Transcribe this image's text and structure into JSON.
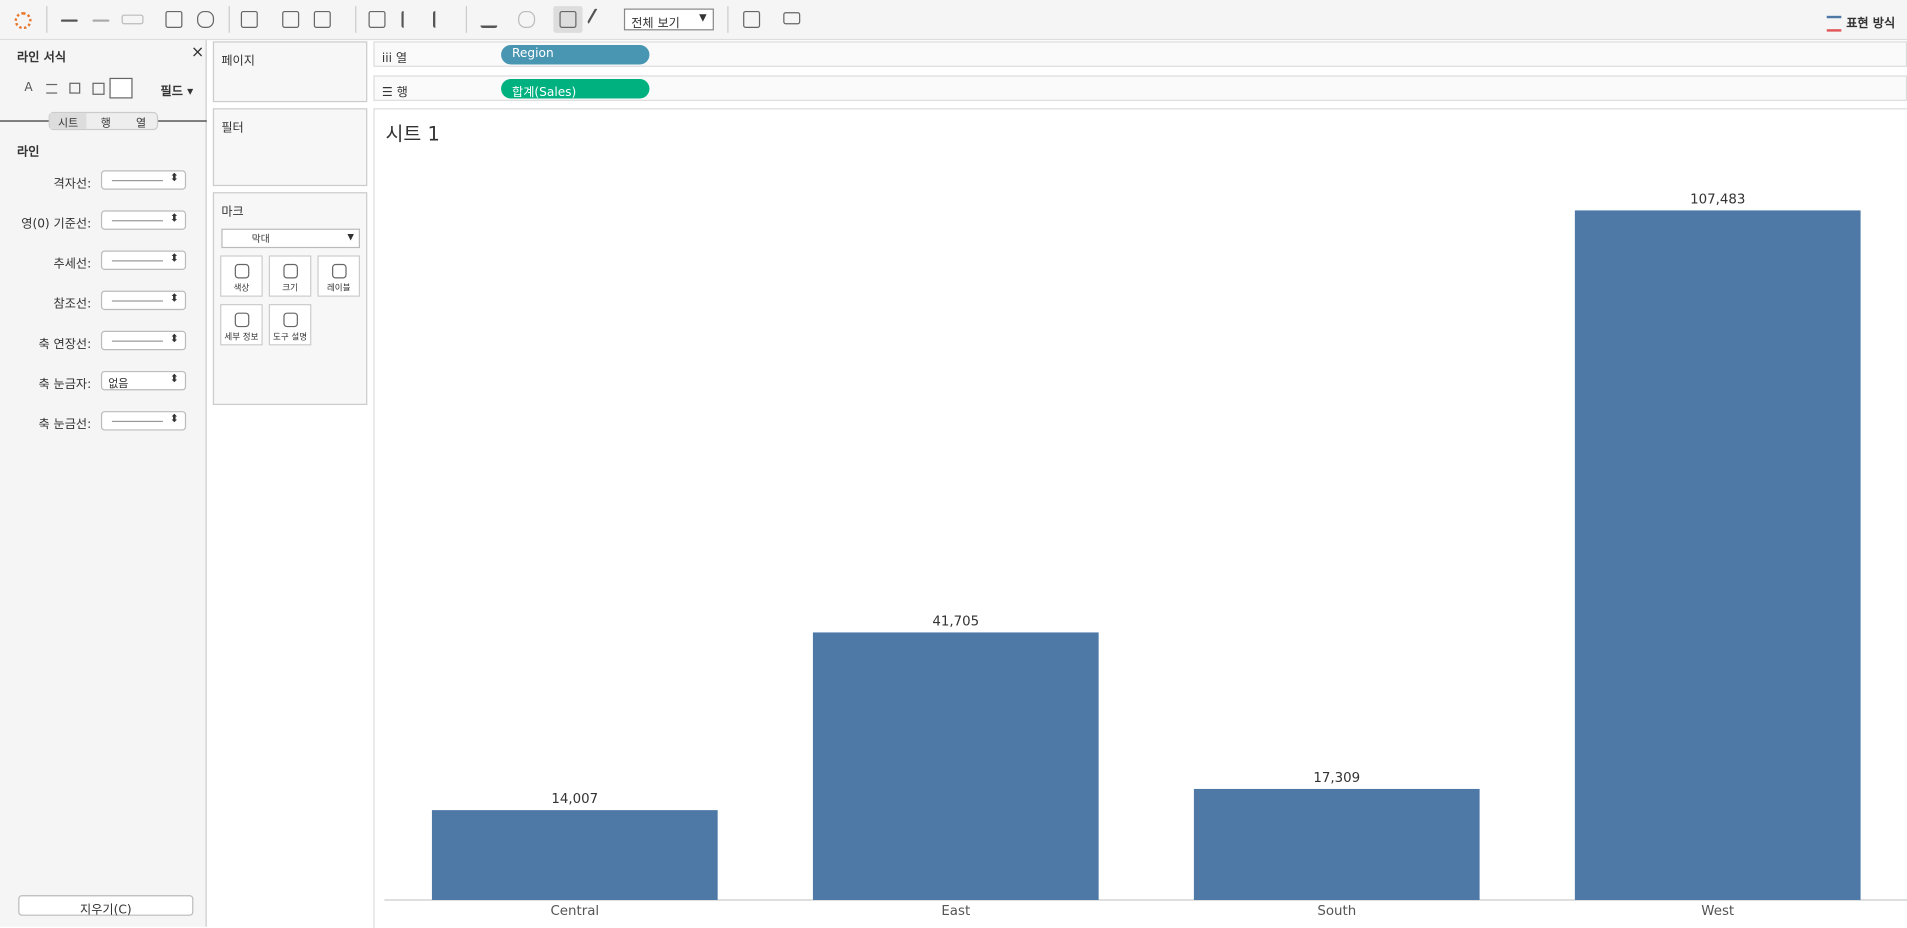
{
  "toolbar": {
    "view_mode": "전체 보기",
    "show_me": "표현 방식"
  },
  "format_panel": {
    "title": "라인 서식",
    "fields_button": "필드",
    "tabs": [
      "시트",
      "행",
      "열"
    ],
    "section": "라인",
    "rows": [
      {
        "label": "격자선:"
      },
      {
        "label": "영(0) 기준선:"
      },
      {
        "label": "추세선:"
      },
      {
        "label": "참조선:"
      },
      {
        "label": "축 연장선:"
      },
      {
        "label": "축 눈금자:",
        "value": "없음"
      },
      {
        "label": "축 눈금선:"
      }
    ],
    "clear_button": "지우기(C)"
  },
  "cards": {
    "pages": "페이지",
    "filters": "필터",
    "marks": {
      "title": "마크",
      "mark_type": "막대",
      "buttons": [
        "색상",
        "크기",
        "레이블",
        "세부 정보",
        "도구 설명"
      ]
    }
  },
  "shelves": {
    "columns": {
      "label": "열",
      "pill": "Region"
    },
    "rows": {
      "label": "행",
      "pill": "합계(Sales)"
    }
  },
  "chart_data": {
    "type": "bar",
    "title": "시트 1",
    "categories": [
      "Central",
      "East",
      "South",
      "West"
    ],
    "values": [
      14007,
      41705,
      17309,
      107483
    ],
    "value_labels": [
      "14,007",
      "41,705",
      "17,309",
      "107,483"
    ],
    "color": "#4e79a7"
  }
}
